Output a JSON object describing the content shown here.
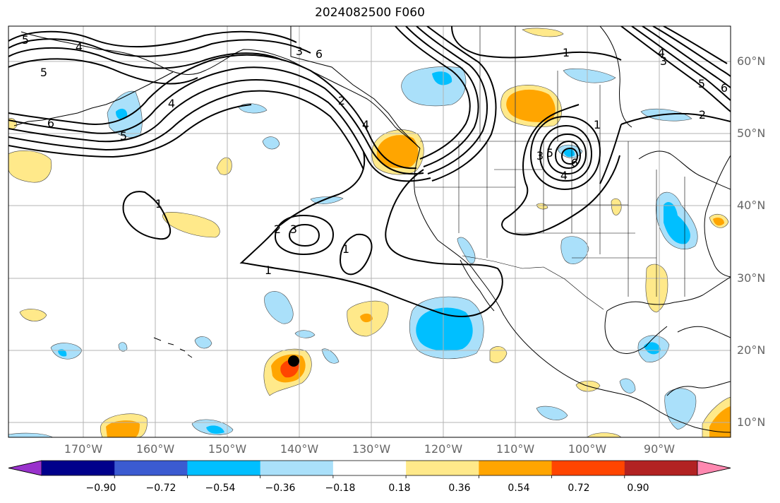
{
  "title": "2024082500 F060",
  "lat_labels": [
    "60°N",
    "50°N",
    "40°N",
    "30°N",
    "20°N",
    "10°N"
  ],
  "lon_labels": [
    "170°W",
    "160°W",
    "150°W",
    "140°W",
    "130°W",
    "120°W",
    "110°W",
    "100°W",
    "90°W"
  ],
  "colorbar": {
    "colors": [
      "#9932cc",
      "#00008b",
      "#3b5bd1",
      "#00bfff",
      "#aae0fa",
      "#ffffff",
      "#ffe98a",
      "#ffa500",
      "#ff4500",
      "#b22222",
      "#ff88b0"
    ],
    "tick_labels": [
      "−0.90",
      "−0.72",
      "−0.54",
      "−0.36",
      "−0.18",
      "0.18",
      "0.36",
      "0.54",
      "0.72",
      "0.90"
    ]
  },
  "contour_labels": [
    "5",
    "4",
    "5",
    "6",
    "5",
    "4",
    "3",
    "6",
    "1",
    "2",
    "4",
    "3",
    "4",
    "5",
    "6",
    "2",
    "3",
    "1",
    "1",
    "2",
    "3",
    "1",
    "1",
    "5",
    "4",
    "6"
  ],
  "storm_marker": {
    "lat": 18.5,
    "lon": -140.0
  }
}
